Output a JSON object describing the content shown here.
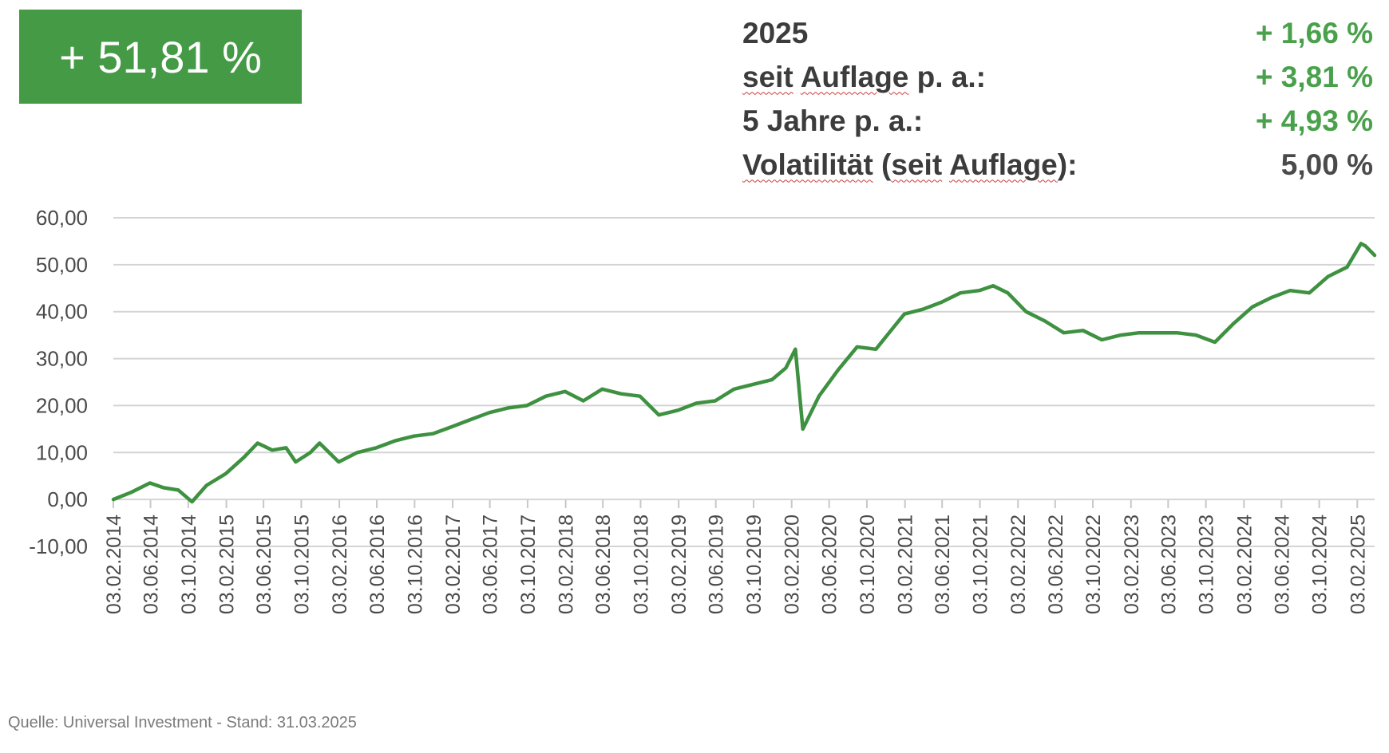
{
  "header": {
    "badge_text": "+ 51,81 %",
    "stats": [
      {
        "label_parts": [
          {
            "text": "2025",
            "flag": false
          }
        ],
        "value": "+ 1,66 %",
        "tone": "pos"
      },
      {
        "label_parts": [
          {
            "text": "seit",
            "flag": true
          },
          {
            "text": " ",
            "flag": false
          },
          {
            "text": "Auflage",
            "flag": true
          },
          {
            "text": " p. a.:",
            "flag": false
          }
        ],
        "value": "+ 3,81 %",
        "tone": "pos"
      },
      {
        "label_parts": [
          {
            "text": "5 Jahre p. a.:",
            "flag": false
          }
        ],
        "value": "+ 4,93 %",
        "tone": "pos"
      },
      {
        "label_parts": [
          {
            "text": "Volatilität",
            "flag": true
          },
          {
            "text": " (",
            "flag": false
          },
          {
            "text": "seit",
            "flag": true
          },
          {
            "text": " ",
            "flag": false
          },
          {
            "text": "Auflage",
            "flag": true
          },
          {
            "text": "):",
            "flag": false
          }
        ],
        "value": "5,00 %",
        "tone": "neutral"
      }
    ]
  },
  "colors": {
    "accent": "#449a45",
    "line": "#3e9140",
    "grid": "#d4d4d4",
    "text": "#3c3c3c",
    "positive": "#4aa14c"
  },
  "footer": {
    "source": "Quelle: Universal Investment - Stand: 31.03.2025"
  },
  "chart_data": {
    "type": "line",
    "title": "",
    "xlabel": "",
    "ylabel": "",
    "ylim": [
      -10,
      60
    ],
    "y_ticks": [
      60,
      50,
      40,
      30,
      20,
      10,
      0,
      -10
    ],
    "y_tick_labels": [
      "60,00",
      "50,00",
      "40,00",
      "30,00",
      "20,00",
      "10,00",
      "0,00",
      "-10,00"
    ],
    "x_range": [
      "03.02.2014",
      "31.03.2025"
    ],
    "x_tick_labels": [
      "03.02.2014",
      "03.06.2014",
      "03.10.2014",
      "03.02.2015",
      "03.06.2015",
      "03.10.2015",
      "03.02.2016",
      "03.06.2016",
      "03.10.2016",
      "03.02.2017",
      "03.06.2017",
      "03.10.2017",
      "03.02.2018",
      "03.06.2018",
      "03.10.2018",
      "03.02.2019",
      "03.06.2019",
      "03.10.2019",
      "03.02.2020",
      "03.06.2020",
      "03.10.2020",
      "03.02.2021",
      "03.06.2021",
      "03.10.2021",
      "03.02.2022",
      "03.06.2022",
      "03.10.2022",
      "03.02.2023",
      "03.06.2023",
      "03.10.2023",
      "03.02.2024",
      "03.06.2024",
      "03.10.2024",
      "03.02.2025"
    ],
    "grid": true,
    "legend": "none",
    "series": [
      {
        "points": [
          [
            "03.02.2014",
            0.0
          ],
          [
            "01.04.2014",
            1.5
          ],
          [
            "01.06.2014",
            3.5
          ],
          [
            "15.07.2014",
            2.5
          ],
          [
            "01.09.2014",
            2.0
          ],
          [
            "15.10.2014",
            -0.5
          ],
          [
            "01.12.2014",
            3.0
          ],
          [
            "01.02.2015",
            5.5
          ],
          [
            "01.04.2015",
            9.0
          ],
          [
            "15.05.2015",
            12.0
          ],
          [
            "01.07.2015",
            10.5
          ],
          [
            "15.08.2015",
            11.0
          ],
          [
            "15.09.2015",
            8.0
          ],
          [
            "01.11.2015",
            10.0
          ],
          [
            "01.12.2015",
            12.0
          ],
          [
            "01.02.2016",
            8.0
          ],
          [
            "01.04.2016",
            10.0
          ],
          [
            "01.06.2016",
            11.0
          ],
          [
            "01.08.2016",
            12.5
          ],
          [
            "01.10.2016",
            13.5
          ],
          [
            "01.12.2016",
            14.0
          ],
          [
            "01.02.2017",
            15.5
          ],
          [
            "01.04.2017",
            17.0
          ],
          [
            "01.06.2017",
            18.5
          ],
          [
            "01.08.2017",
            19.5
          ],
          [
            "01.10.2017",
            20.0
          ],
          [
            "01.12.2017",
            22.0
          ],
          [
            "01.02.2018",
            23.0
          ],
          [
            "01.04.2018",
            21.0
          ],
          [
            "01.06.2018",
            23.5
          ],
          [
            "01.08.2018",
            22.5
          ],
          [
            "01.10.2018",
            22.0
          ],
          [
            "01.12.2018",
            18.0
          ],
          [
            "01.02.2019",
            19.0
          ],
          [
            "01.04.2019",
            20.5
          ],
          [
            "01.06.2019",
            21.0
          ],
          [
            "01.08.2019",
            23.5
          ],
          [
            "01.10.2019",
            24.5
          ],
          [
            "01.12.2019",
            25.5
          ],
          [
            "15.01.2020",
            28.0
          ],
          [
            "15.02.2020",
            32.0
          ],
          [
            "10.03.2020",
            15.0
          ],
          [
            "01.05.2020",
            22.0
          ],
          [
            "01.07.2020",
            27.5
          ],
          [
            "01.09.2020",
            32.5
          ],
          [
            "01.11.2020",
            32.0
          ],
          [
            "01.01.2021",
            37.0
          ],
          [
            "01.02.2021",
            39.5
          ],
          [
            "01.04.2021",
            40.5
          ],
          [
            "01.06.2021",
            42.0
          ],
          [
            "01.08.2021",
            44.0
          ],
          [
            "01.10.2021",
            44.5
          ],
          [
            "15.11.2021",
            45.5
          ],
          [
            "01.01.2022",
            44.0
          ],
          [
            "01.03.2022",
            40.0
          ],
          [
            "01.05.2022",
            38.0
          ],
          [
            "01.07.2022",
            35.5
          ],
          [
            "01.09.2022",
            36.0
          ],
          [
            "01.11.2022",
            34.0
          ],
          [
            "01.01.2023",
            35.0
          ],
          [
            "01.03.2023",
            35.5
          ],
          [
            "01.05.2023",
            35.5
          ],
          [
            "01.07.2023",
            35.5
          ],
          [
            "01.09.2023",
            35.0
          ],
          [
            "01.11.2023",
            33.5
          ],
          [
            "01.01.2024",
            37.5
          ],
          [
            "01.03.2024",
            41.0
          ],
          [
            "01.05.2024",
            43.0
          ],
          [
            "01.07.2024",
            44.5
          ],
          [
            "01.09.2024",
            44.0
          ],
          [
            "01.11.2024",
            47.5
          ],
          [
            "01.01.2025",
            49.5
          ],
          [
            "15.02.2025",
            54.5
          ],
          [
            "01.03.2025",
            54.0
          ],
          [
            "31.03.2025",
            52.0
          ]
        ]
      }
    ]
  }
}
